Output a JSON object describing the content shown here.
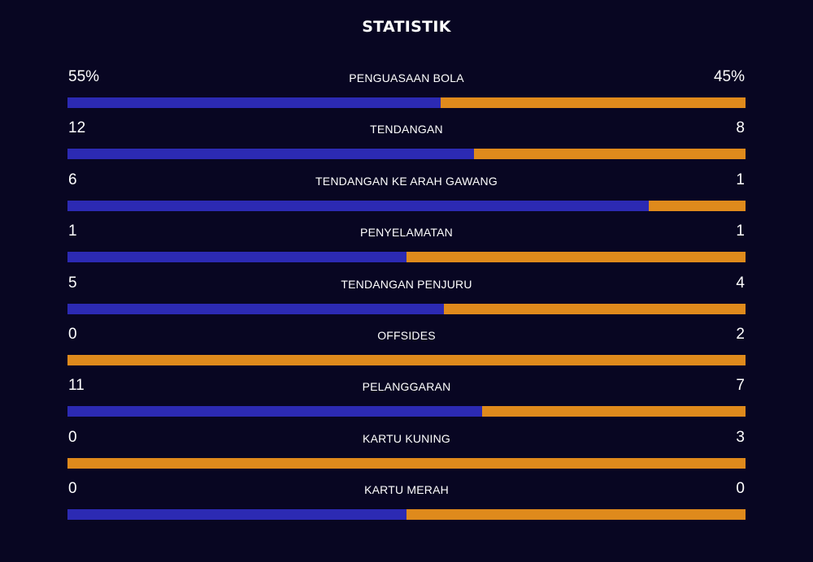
{
  "title": "STATISTIK",
  "colors": {
    "background": "#080622",
    "home": "#2c2ab3",
    "away": "#df8a1c"
  },
  "chart_data": {
    "type": "bar",
    "orientation": "horizontal",
    "stacked": true,
    "title": "STATISTIK",
    "categories": [
      "PENGUASAAN BOLA",
      "TENDANGAN",
      "TENDANGAN KE ARAH GAWANG",
      "PENYELAMATAN",
      "TENDANGAN PENJURU",
      "OFFSIDES",
      "PELANGGARAN",
      "KARTU KUNING",
      "KARTU MERAH"
    ],
    "series": [
      {
        "values": [
          55,
          12,
          6,
          1,
          5,
          0,
          11,
          0,
          0
        ],
        "labels": [
          "55%",
          "12",
          "6",
          "1",
          "5",
          "0",
          "11",
          "0",
          "0"
        ]
      },
      {
        "values": [
          45,
          8,
          1,
          1,
          4,
          2,
          7,
          3,
          0
        ],
        "labels": [
          "45%",
          "8",
          "1",
          "1",
          "4",
          "2",
          "7",
          "3",
          "0"
        ]
      }
    ],
    "legend": "none",
    "grid": false
  }
}
